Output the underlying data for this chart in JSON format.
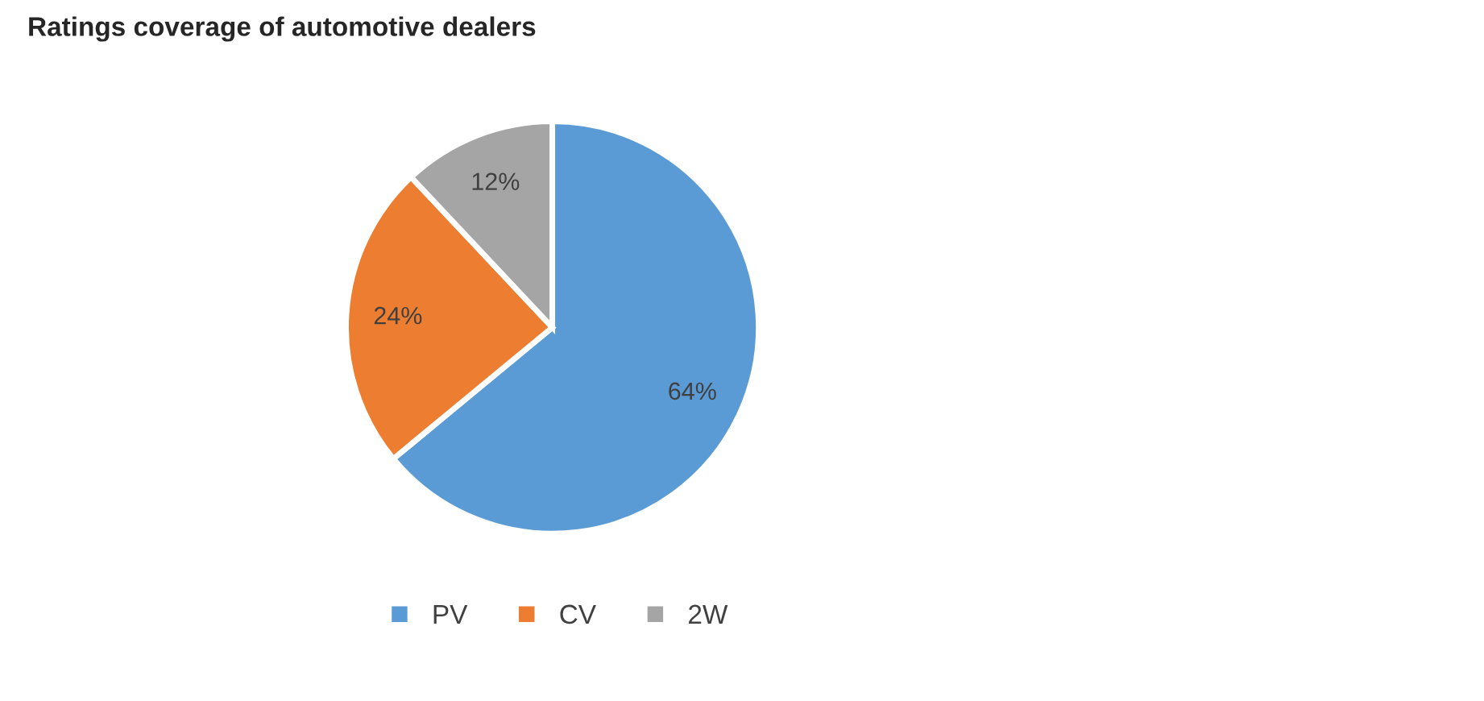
{
  "chart_data": {
    "type": "pie",
    "title": "Ratings coverage of automotive dealers",
    "categories": [
      "PV",
      "CV",
      "2W"
    ],
    "values": [
      64,
      24,
      12
    ],
    "colors": [
      "#5b9bd5",
      "#ed7d31",
      "#a5a5a5"
    ],
    "value_labels": [
      "64%",
      "24%",
      "12%"
    ],
    "legend": "bottom"
  }
}
